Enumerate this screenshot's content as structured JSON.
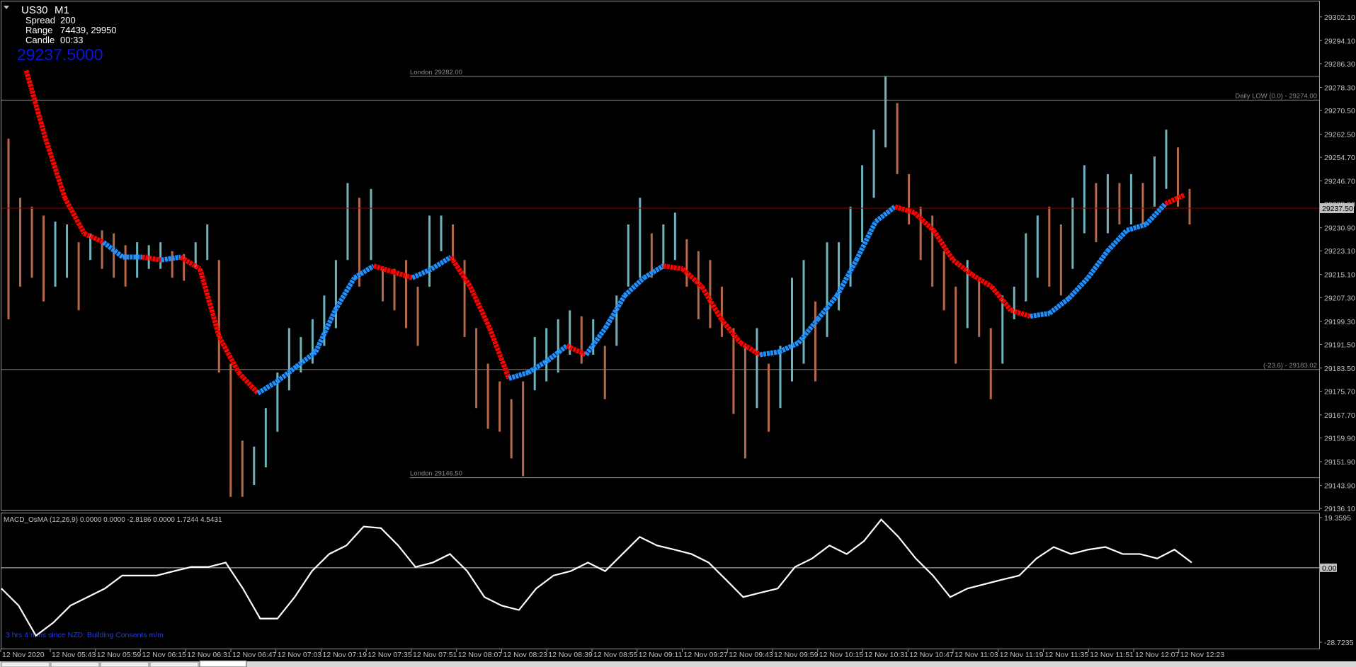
{
  "header": {
    "symbol": "US30",
    "timeframe": "M1",
    "spread_label": "Spread",
    "spread": "200",
    "range_label": "Range",
    "range": "74439, 29950",
    "candle_label": "Candle",
    "candle": "00:33",
    "bid": "29237.5000"
  },
  "price_chart": {
    "ylim": [
      29135.4,
      29307.8
    ],
    "yticks": [
      {
        "value": 29302.1,
        "label": "29302.10"
      },
      {
        "value": 29294.1,
        "label": "29294.10"
      },
      {
        "value": 29286.3,
        "label": "29286.30"
      },
      {
        "value": 29278.3,
        "label": "29278.30"
      },
      {
        "value": 29270.5,
        "label": "29270.50"
      },
      {
        "value": 29262.5,
        "label": "29262.50"
      },
      {
        "value": 29254.7,
        "label": "29254.70"
      },
      {
        "value": 29246.7,
        "label": "29246.70"
      },
      {
        "value": 29238.9,
        "label": "29238.90"
      },
      {
        "value": 29230.9,
        "label": "29230.90"
      },
      {
        "value": 29223.1,
        "label": "29223.10"
      },
      {
        "value": 29215.1,
        "label": "29215.10"
      },
      {
        "value": 29207.3,
        "label": "29207.30"
      },
      {
        "value": 29199.3,
        "label": "29199.30"
      },
      {
        "value": 29191.5,
        "label": "29191.50"
      },
      {
        "value": 29183.5,
        "label": "29183.50"
      },
      {
        "value": 29175.7,
        "label": "29175.70"
      },
      {
        "value": 29167.7,
        "label": "29167.70"
      },
      {
        "value": 29159.9,
        "label": "29159.90"
      },
      {
        "value": 29151.9,
        "label": "29151.90"
      },
      {
        "value": 29143.9,
        "label": "29143.90"
      },
      {
        "value": 29136.1,
        "label": "29136.10"
      }
    ],
    "candles": {
      "up_color": "#6fb3bd",
      "down_color": "#b5684a",
      "high": [
        29261,
        29241,
        29238,
        29235,
        29233,
        29232,
        29226,
        29229,
        29230,
        29229,
        29225,
        29226,
        29225,
        29226,
        29223,
        29222,
        29226,
        29232,
        29220,
        29185,
        29159,
        29157,
        29170,
        29182,
        29197,
        29194,
        29200,
        29208,
        29220,
        29246,
        29241,
        29244,
        29217,
        29217,
        29220,
        29211,
        29235,
        29235,
        29232,
        29220,
        29197,
        29185,
        29179,
        29173,
        29179,
        29194,
        29197,
        29200,
        29203,
        29201,
        29200,
        29191,
        29208,
        29232,
        29241,
        29229,
        29232,
        29236,
        29227,
        29223,
        29220,
        29211,
        29197,
        29191,
        29197,
        29185,
        29191,
        29214,
        29220,
        29206,
        29226,
        29226,
        29238,
        29252,
        29264,
        29282,
        29273,
        29249,
        29238,
        29235,
        29223,
        29211,
        29220,
        29214,
        29197,
        29208,
        29211,
        29229,
        29235,
        29238,
        29232,
        29241,
        29252,
        29246,
        29249,
        29246,
        29249,
        29246,
        29255,
        29264,
        29258,
        29244
      ],
      "low": [
        29200,
        29211,
        29214,
        29206,
        29211,
        29214,
        29203,
        29220,
        29217,
        29214,
        29211,
        29214,
        29217,
        29217,
        29214,
        29213,
        29217,
        29220,
        29182,
        29140,
        29140,
        29144,
        29150,
        29162,
        29176,
        29182,
        29185,
        29191,
        29197,
        29220,
        29211,
        29220,
        29206,
        29203,
        29197,
        29191,
        29211,
        29223,
        29220,
        29194,
        29170,
        29163,
        29162,
        29153,
        29147,
        29176,
        29179,
        29182,
        29188,
        29185,
        29188,
        29173,
        29191,
        29211,
        29214,
        29214,
        29217,
        29220,
        29211,
        29200,
        29197,
        29194,
        29168,
        29153,
        29170,
        29162,
        29170,
        29179,
        29185,
        29179,
        29194,
        29203,
        29211,
        29226,
        29241,
        29258,
        29249,
        29232,
        29220,
        29211,
        29203,
        29185,
        29197,
        29194,
        29173,
        29185,
        29200,
        29206,
        29214,
        29211,
        29208,
        29217,
        29229,
        29226,
        29229,
        29232,
        29232,
        29232,
        29238,
        29244,
        29238,
        29232
      ]
    },
    "trend": {
      "up_color": "#1e8fff",
      "down_color": "#ff0000",
      "values": [
        29284,
        29261,
        29241,
        29229,
        29226,
        29221,
        29221,
        29220,
        29221,
        29217,
        29194,
        29182,
        29175,
        29179,
        29184,
        29189,
        29203,
        29214,
        29218,
        29216,
        29214,
        29217,
        29221,
        29211,
        29197,
        29180,
        29182,
        29186,
        29191,
        29188,
        29197,
        29208,
        29214,
        29218,
        29217,
        29211,
        29200,
        29192,
        29188,
        29189,
        29192,
        29200,
        29208,
        29220,
        29233,
        29238,
        29236,
        29230,
        29220,
        29215,
        29211,
        29203,
        29201,
        29202,
        29207,
        29214,
        29223,
        29230,
        29232,
        29239,
        29242
      ],
      "direction": [
        "down",
        "down",
        "down",
        "down",
        "down",
        "up",
        "up",
        "down",
        "up",
        "down",
        "down",
        "down",
        "down",
        "up",
        "up",
        "up",
        "up",
        "up",
        "up",
        "down",
        "down",
        "up",
        "up",
        "down",
        "down",
        "down",
        "up",
        "up",
        "up",
        "down",
        "up",
        "up",
        "up",
        "up",
        "down",
        "down",
        "down",
        "down",
        "down",
        "up",
        "up",
        "up",
        "up",
        "up",
        "up",
        "up",
        "down",
        "down",
        "down",
        "down",
        "down",
        "down",
        "down",
        "up",
        "up",
        "up",
        "up",
        "up",
        "up",
        "up",
        "down"
      ]
    },
    "levels": [
      {
        "label": "London 29282.00",
        "value": 29282,
        "color": "#8a8a8a",
        "from_left": false
      },
      {
        "label": "Daily LOW (0.0) -  29274.00",
        "value": 29274,
        "color": "#8a8a8a",
        "from_left": true
      },
      {
        "label": "(-23.6) -  29183.02",
        "value": 29183.02,
        "color": "#8a8a8a",
        "from_left": true
      },
      {
        "label": "London 29146.50",
        "value": 29146.5,
        "color": "#8a8a8a",
        "from_left": false
      }
    ],
    "current_price": {
      "label": "29237.50",
      "value": 29237.5,
      "color": "#8b0000"
    }
  },
  "macd": {
    "title": "MACD_OsMA (12,26,9) 0.0000 0.0000 -2.8186 0.0000 1.7244 4.5431",
    "ylim": [
      -31.17,
      20.99
    ],
    "yticks": [
      {
        "value": 19.3595,
        "label": "19.3595"
      },
      {
        "value": 0,
        "label": "0.00"
      },
      {
        "value": -28.7235,
        "label": "-28.7235"
      }
    ],
    "color": "#ffffff",
    "values": [
      -8.0,
      -14.6,
      -26.2,
      -21.2,
      -14.6,
      -11.3,
      -8.0,
      -3.0,
      -3.0,
      -3.0,
      -1.3,
      0.3,
      0.3,
      2.0,
      -8.0,
      -19.6,
      -19.6,
      -11.3,
      -1.3,
      5.3,
      8.6,
      15.9,
      15.3,
      8.6,
      0.3,
      2.0,
      5.3,
      -1.3,
      -11.3,
      -14.6,
      -16.3,
      -8.0,
      -3.0,
      -1.3,
      2.0,
      -1.3,
      5.3,
      11.9,
      8.6,
      7.0,
      5.3,
      2.0,
      -4.6,
      -11.3,
      -9.6,
      -8.0,
      0.3,
      3.6,
      8.6,
      5.3,
      10.3,
      18.6,
      11.9,
      3.6,
      -3.0,
      -11.3,
      -8.0,
      -6.3,
      -4.6,
      -3.0,
      3.6,
      8.0,
      5.3,
      7.0,
      8.0,
      5.3,
      5.3,
      3.6,
      7.0,
      2.0
    ]
  },
  "news": "3 hrs 4 mins since NZD: Building Consents m/m",
  "time_axis": [
    "12 Nov 2020",
    "12 Nov 05:43",
    "12 Nov 05:59",
    "12 Nov 06:15",
    "12 Nov 06:31",
    "12 Nov 06:47",
    "12 Nov 07:03",
    "12 Nov 07:19",
    "12 Nov 07:35",
    "12 Nov 07:51",
    "12 Nov 08:07",
    "12 Nov 08:23",
    "12 Nov 08:39",
    "12 Nov 08:55",
    "12 Nov 09:11",
    "12 Nov 09:27",
    "12 Nov 09:43",
    "12 Nov 09:59",
    "12 Nov 10:15",
    "12 Nov 10:31",
    "12 Nov 10:47",
    "12 Nov 11:03",
    "12 Nov 11:19",
    "12 Nov 11:35",
    "12 Nov 11:51",
    "12 Nov 12:07",
    "12 Nov 12:23"
  ]
}
